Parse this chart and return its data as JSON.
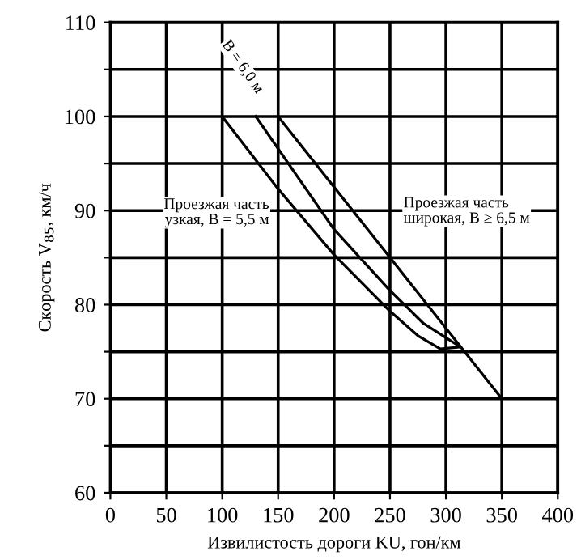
{
  "chart_data": {
    "type": "line",
    "xlabel": "Извилистость дороги KU, гон/км",
    "ylabel": "Скорость V$_{85}$, км/ч",
    "series": [
      {
        "name": "Проезжая часть\nузкая, B = 5,5 м",
        "color": "#000000",
        "x": [
          100,
          150,
          200,
          250,
          275,
          295,
          313
        ],
        "values": [
          100,
          92.3,
          85.3,
          79.3,
          76.7,
          75.3,
          75.5
        ]
      },
      {
        "name": "B = 6,0 м",
        "color": "#000000",
        "x": [
          130,
          200,
          250,
          280,
          313
        ],
        "values": [
          100,
          88,
          81.5,
          78,
          75.5
        ]
      },
      {
        "name": "Проезжая часть\nширокая, B ≥ 6,5 м",
        "color": "#000000",
        "x": [
          150,
          250,
          350
        ],
        "values": [
          100,
          85,
          70
        ]
      }
    ],
    "xlim": [
      0,
      400
    ],
    "ylim": [
      60,
      110
    ],
    "xticks": [
      0,
      50,
      100,
      150,
      200,
      250,
      300,
      350,
      400
    ],
    "yticks": [
      60,
      {
        "value": 65,
        "label": null
      },
      70,
      {
        "value": 75,
        "label": null
      },
      80,
      {
        "value": 85,
        "label": null
      },
      90,
      {
        "value": 95,
        "label": null
      },
      100,
      {
        "value": 105,
        "label": null
      },
      110
    ],
    "grid": true,
    "marker": "none",
    "line_style": "solid",
    "legend": false
  }
}
